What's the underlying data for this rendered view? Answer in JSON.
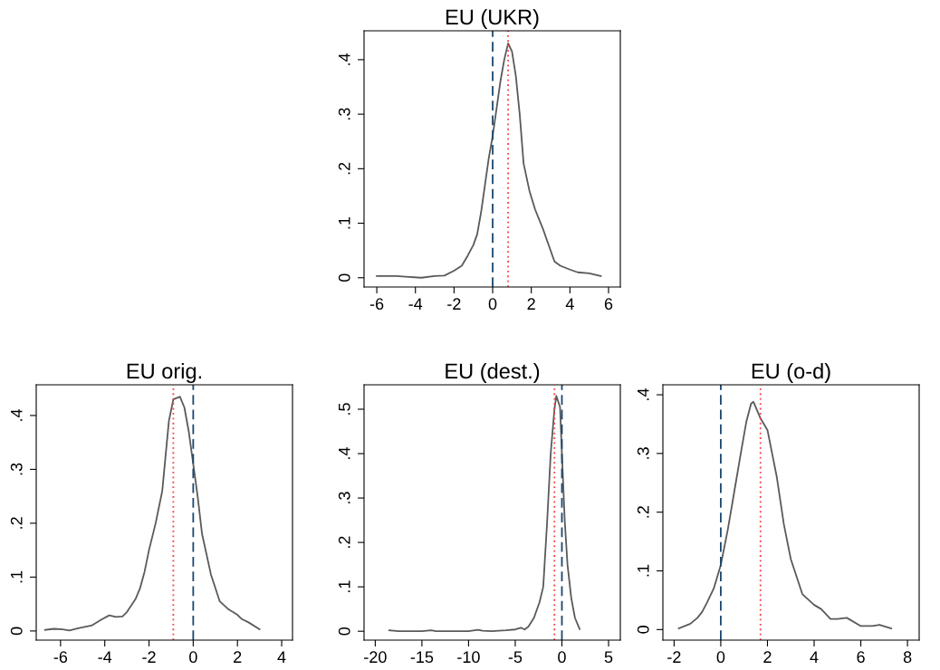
{
  "chart_data": [
    {
      "type": "line",
      "title": "EU (UKR)",
      "xlim": [
        -6.66,
        6.61
      ],
      "ylim": [
        -0.017,
        0.453
      ],
      "xticks": [
        -6,
        -4,
        -2,
        0,
        2,
        4,
        6
      ],
      "yticks": [
        {
          "value": 0,
          "label": "0"
        },
        {
          "value": 0.1,
          "label": ".1"
        },
        {
          "value": 0.2,
          "label": ".2"
        },
        {
          "value": 0.3,
          "label": ".3"
        },
        {
          "value": 0.4,
          "label": ".4"
        }
      ],
      "series": [
        {
          "color": "#5a5a5a",
          "x": [
            -6,
            -5.5,
            -5,
            -4.5,
            -3.7,
            -3,
            -2.5,
            -2,
            -1.6,
            -1.3,
            -1.0,
            -0.8,
            -0.6,
            -0.4,
            -0.2,
            0,
            0.2,
            0.4,
            0.6,
            0.8,
            1.0,
            1.2,
            1.4,
            1.6,
            1.9,
            2.2,
            2.6,
            3.2,
            3.5,
            4,
            4.4,
            5,
            5.6
          ],
          "values": [
            0.003,
            0.003,
            0.003,
            0.002,
            0.0,
            0.003,
            0.004,
            0.013,
            0.022,
            0.04,
            0.06,
            0.08,
            0.12,
            0.17,
            0.22,
            0.26,
            0.31,
            0.36,
            0.4,
            0.43,
            0.415,
            0.37,
            0.3,
            0.21,
            0.16,
            0.125,
            0.09,
            0.03,
            0.022,
            0.015,
            0.01,
            0.008,
            0.003
          ]
        }
      ],
      "ref_lines": [
        {
          "axis": "x",
          "value": 0,
          "color": "#1a476f",
          "line_style": "dashed"
        },
        {
          "axis": "x",
          "value": 0.8,
          "color": "#ff4040",
          "line_style": "dotted"
        }
      ]
    },
    {
      "type": "line",
      "title": "EU orig.",
      "xlim": [
        -7.1,
        4.49
      ],
      "ylim": [
        -0.017,
        0.457
      ],
      "xticks": [
        -6,
        -4,
        -2,
        0,
        2,
        4
      ],
      "yticks": [
        {
          "value": 0,
          "label": "0"
        },
        {
          "value": 0.1,
          "label": ".1"
        },
        {
          "value": 0.2,
          "label": ".2"
        },
        {
          "value": 0.3,
          "label": ".3"
        },
        {
          "value": 0.4,
          "label": ".4"
        }
      ],
      "series": [
        {
          "color": "#5a5a5a",
          "x": [
            -6.7,
            -6.3,
            -5.9,
            -5.6,
            -5.2,
            -4.6,
            -4.2,
            -3.8,
            -3.5,
            -3.2,
            -3,
            -2.6,
            -2.4,
            -2.2,
            -2,
            -1.7,
            -1.4,
            -1.1,
            -0.9,
            -0.6,
            -0.4,
            -0.2,
            0,
            0.2,
            0.4,
            0.8,
            1.2,
            1.6,
            2,
            2.2,
            2.5,
            3
          ],
          "values": [
            0.002,
            0.004,
            0.003,
            0.001,
            0.005,
            0.01,
            0.02,
            0.029,
            0.026,
            0.027,
            0.035,
            0.06,
            0.08,
            0.11,
            0.15,
            0.2,
            0.26,
            0.39,
            0.43,
            0.435,
            0.415,
            0.37,
            0.31,
            0.25,
            0.18,
            0.105,
            0.055,
            0.04,
            0.03,
            0.022,
            0.016,
            0.003
          ]
        }
      ],
      "ref_lines": [
        {
          "axis": "x",
          "value": 0,
          "color": "#1a476f",
          "line_style": "dashed"
        },
        {
          "axis": "x",
          "value": -0.9,
          "color": "#ff4040",
          "line_style": "dotted"
        }
      ]
    },
    {
      "type": "line",
      "title": "EU (dest.)",
      "xlim": [
        -21.2,
        6.26
      ],
      "ylim": [
        -0.02,
        0.555
      ],
      "xticks": [
        -20,
        -15,
        -10,
        -5,
        0,
        5
      ],
      "yticks": [
        {
          "value": 0,
          "label": "0"
        },
        {
          "value": 0.1,
          "label": ".1"
        },
        {
          "value": 0.2,
          "label": ".2"
        },
        {
          "value": 0.3,
          "label": ".3"
        },
        {
          "value": 0.4,
          "label": ".4"
        },
        {
          "value": 0.5,
          "label": ".5"
        }
      ],
      "series": [
        {
          "color": "#5a5a5a",
          "x": [
            -18.5,
            -17.5,
            -15,
            -14,
            -13.5,
            -10,
            -9,
            -8.5,
            -7.5,
            -6,
            -5,
            -4.4,
            -4,
            -3.6,
            -3,
            -2.4,
            -2,
            -1.6,
            -1.2,
            -0.8,
            -0.6,
            -0.2,
            0,
            0.3,
            0.6,
            1,
            1.4,
            1.9
          ],
          "values": [
            0.002,
            0.0,
            0.0,
            0.002,
            0.0,
            0.0,
            0.003,
            0.001,
            0.0,
            0.002,
            0.004,
            0.008,
            0.004,
            0.01,
            0.03,
            0.065,
            0.1,
            0.24,
            0.4,
            0.5,
            0.53,
            0.505,
            0.4,
            0.25,
            0.15,
            0.075,
            0.03,
            0.005
          ]
        }
      ],
      "ref_lines": [
        {
          "axis": "x",
          "value": 0,
          "color": "#1a476f",
          "line_style": "dashed"
        },
        {
          "axis": "x",
          "value": -0.8,
          "color": "#ff4040",
          "line_style": "dotted"
        }
      ]
    },
    {
      "type": "line",
      "title": "EU (o-d)",
      "xlim": [
        -2.48,
        8.5
      ],
      "ylim": [
        -0.018,
        0.417
      ],
      "xticks": [
        -2,
        0,
        2,
        4,
        6,
        8
      ],
      "yticks": [
        {
          "value": 0,
          "label": "0"
        },
        {
          "value": 0.1,
          "label": ".1"
        },
        {
          "value": 0.2,
          "label": ".2"
        },
        {
          "value": 0.3,
          "label": ".3"
        },
        {
          "value": 0.4,
          "label": ".4"
        }
      ],
      "series": [
        {
          "color": "#5a5a5a",
          "x": [
            -1.8,
            -1.3,
            -1,
            -0.8,
            -0.6,
            -0.3,
            0,
            0.3,
            0.6,
            0.9,
            1.1,
            1.3,
            1.4,
            1.7,
            2.0,
            2.4,
            2.7,
            3,
            3.5,
            4,
            4.3,
            4.7,
            5,
            5.4,
            6,
            6.5,
            6.8,
            7.3
          ],
          "values": [
            0.002,
            0.01,
            0.02,
            0.03,
            0.045,
            0.07,
            0.11,
            0.17,
            0.24,
            0.31,
            0.355,
            0.385,
            0.388,
            0.36,
            0.34,
            0.26,
            0.18,
            0.12,
            0.06,
            0.042,
            0.035,
            0.018,
            0.018,
            0.02,
            0.006,
            0.006,
            0.008,
            0.002
          ]
        }
      ],
      "ref_lines": [
        {
          "axis": "x",
          "value": 0,
          "color": "#1a476f",
          "line_style": "dashed"
        },
        {
          "axis": "x",
          "value": 1.7,
          "color": "#ff4040",
          "line_style": "dotted"
        }
      ]
    }
  ]
}
